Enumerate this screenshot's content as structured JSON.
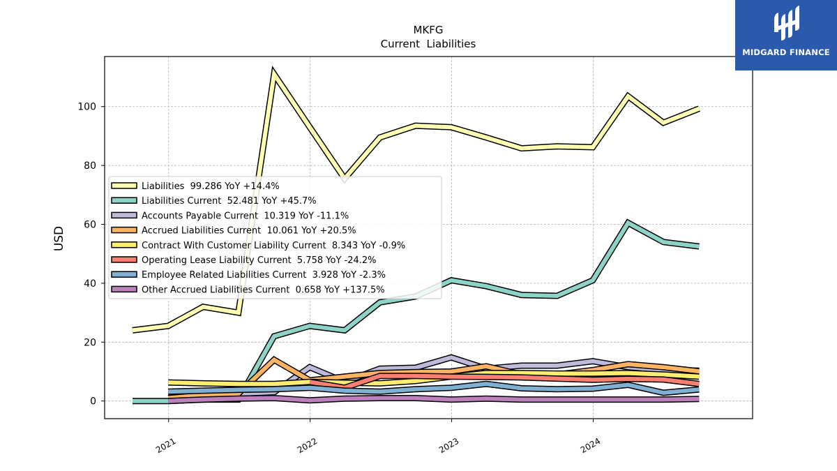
{
  "chart_data": {
    "type": "line",
    "title": "MKFG",
    "subtitle": "Current  Liabilities",
    "ylabel": "USD",
    "xlabel": "",
    "xlim": [
      "2020-07-20",
      "2025-02-15"
    ],
    "ylim": [
      -6,
      117
    ],
    "x_ticks": [
      "2021",
      "2022",
      "2023",
      "2024"
    ],
    "y_ticks": [
      0,
      20,
      40,
      60,
      80,
      100
    ],
    "grid": true,
    "legend_placement": "center-left",
    "series": [
      {
        "name": "Liabilities",
        "legend": "Liabilities  99.286 YoY +14.4%",
        "color": "#ffffb3",
        "x": [
          "2020-09-30",
          "2020-12-31",
          "2021-03-31",
          "2021-06-30",
          "2021-09-30",
          "2021-12-31",
          "2022-03-31",
          "2022-06-30",
          "2022-09-30",
          "2022-12-31",
          "2023-03-31",
          "2023-06-30",
          "2023-09-30",
          "2023-12-31",
          "2024-03-31",
          "2024-06-30",
          "2024-09-30"
        ],
        "values": [
          24,
          25.5,
          32,
          30,
          111,
          93,
          75.5,
          89.5,
          93.5,
          93,
          89.5,
          85.8,
          86.5,
          86.2,
          103.5,
          94.5,
          99.3
        ]
      },
      {
        "name": "Liabilities Current",
        "legend": "Liabilities Current  52.481 YoY +45.7%",
        "color": "#8dd3c7",
        "x": [
          "2020-09-30",
          "2020-12-31",
          "2021-03-31",
          "2021-06-30",
          "2021-09-30",
          "2021-12-31",
          "2022-03-31",
          "2022-06-30",
          "2022-09-30",
          "2022-12-31",
          "2023-03-31",
          "2023-06-30",
          "2023-09-30",
          "2023-12-31",
          "2024-03-31",
          "2024-06-30",
          "2024-09-30"
        ],
        "values": [
          0,
          0,
          0.5,
          0.5,
          22,
          25.5,
          24,
          33.5,
          35.5,
          41,
          39,
          36,
          35.7,
          41,
          60.5,
          54,
          52.5
        ]
      },
      {
        "name": "Accounts Payable Current",
        "legend": "Accounts Payable Current  10.319 YoY -11.1%",
        "color": "#bebada",
        "x": [
          "2020-12-31",
          "2021-03-31",
          "2021-06-30",
          "2021-09-30",
          "2021-12-31",
          "2022-03-31",
          "2022-06-30",
          "2022-09-30",
          "2022-12-31",
          "2023-03-31",
          "2023-06-30",
          "2023-09-30",
          "2023-12-31",
          "2024-03-31",
          "2024-06-30",
          "2024-09-30"
        ],
        "values": [
          1.5,
          2,
          2.5,
          3,
          11.5,
          6.5,
          11,
          11.3,
          14.8,
          11,
          12,
          12,
          13.5,
          11.5,
          10.5,
          10.3
        ]
      },
      {
        "name": "Accrued Liabilities Current",
        "legend": "Accrued Liabilities Current  10.061 YoY +20.5%",
        "color": "#fdb462",
        "x": [
          "2020-12-31",
          "2021-03-31",
          "2021-06-30",
          "2021-09-30",
          "2021-12-31",
          "2022-03-31",
          "2022-06-30",
          "2022-09-30",
          "2022-12-31",
          "2023-03-31",
          "2023-06-30",
          "2023-09-30",
          "2023-12-31",
          "2024-03-31",
          "2024-06-30",
          "2024-09-30"
        ],
        "values": [
          1,
          2,
          2.5,
          14,
          7,
          8.3,
          9.5,
          9.8,
          10,
          11.8,
          9,
          9,
          10.5,
          12.5,
          11.5,
          10.1
        ]
      },
      {
        "name": "Contract With Customer Liability Current",
        "legend": "Contract With Customer Liability Current  8.343 YoY -0.9%",
        "color": "#ffed6f",
        "x": [
          "2020-12-31",
          "2021-03-31",
          "2021-06-30",
          "2021-09-30",
          "2021-12-31",
          "2022-03-31",
          "2022-06-30",
          "2022-09-30",
          "2022-12-31",
          "2023-03-31",
          "2023-06-30",
          "2023-09-30",
          "2023-12-31",
          "2024-03-31",
          "2024-06-30",
          "2024-09-30"
        ],
        "values": [
          6.3,
          6,
          5.8,
          5.8,
          6.5,
          6.2,
          6,
          6.8,
          8.3,
          9.5,
          9.5,
          9.3,
          9.3,
          9.5,
          9,
          8.3
        ]
      },
      {
        "name": "Operating Lease Liability Current",
        "legend": "Operating Lease Liability Current  5.758 YoY -24.2%",
        "color": "#fb8072",
        "x": [
          "2021-12-31",
          "2022-03-31",
          "2022-06-30",
          "2022-09-30",
          "2022-12-31",
          "2023-03-31",
          "2023-06-30",
          "2023-09-30",
          "2023-12-31",
          "2024-03-31",
          "2024-06-30",
          "2024-09-30"
        ],
        "values": [
          6.5,
          4.5,
          8.5,
          8.5,
          8.3,
          8.2,
          8,
          7.6,
          7.2,
          7.5,
          7.3,
          5.8
        ]
      },
      {
        "name": "Employee Related Liabilities Current",
        "legend": "Employee Related Liabilities Current  3.928 YoY -2.3%",
        "color": "#80b1d3",
        "x": [
          "2020-12-31",
          "2021-03-31",
          "2021-06-30",
          "2021-09-30",
          "2021-12-31",
          "2022-03-31",
          "2022-06-30",
          "2022-09-30",
          "2022-12-31",
          "2023-03-31",
          "2023-06-30",
          "2023-09-30",
          "2023-12-31",
          "2024-03-31",
          "2024-06-30",
          "2024-09-30"
        ],
        "values": [
          3.2,
          3.5,
          3.8,
          4,
          4.5,
          3.5,
          3.2,
          4,
          4.5,
          5.8,
          4.3,
          4,
          4.2,
          5.5,
          2.8,
          3.9
        ]
      },
      {
        "name": "Other Accrued Liabilities Current",
        "legend": "Other Accrued Liabilities Current  0.658 YoY +137.5%",
        "color": "#bc80bd",
        "x": [
          "2020-12-31",
          "2021-03-31",
          "2021-06-30",
          "2021-09-30",
          "2021-12-31",
          "2022-03-31",
          "2022-06-30",
          "2022-09-30",
          "2022-12-31",
          "2023-03-31",
          "2023-06-30",
          "2023-09-30",
          "2023-12-31",
          "2024-03-31",
          "2024-06-30",
          "2024-09-30"
        ],
        "values": [
          0,
          0.5,
          0.8,
          1,
          0.2,
          0.8,
          1,
          1,
          0.5,
          0.8,
          0.5,
          0.5,
          0.5,
          0.5,
          0.5,
          0.7
        ]
      }
    ]
  },
  "logo": {
    "text": "MIDGARD FINANCE",
    "bg_color": "#2b5aad"
  }
}
